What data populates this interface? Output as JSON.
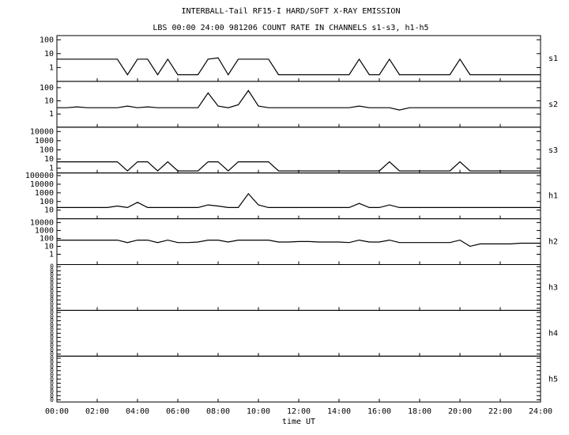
{
  "title": "INTERBALL-Tail RF15-I HARD/SOFT X-RAY EMISSION",
  "subtitle": "LBS 00:00 24:00 981206  COUNT RATE IN CHANNELS s1-s3, h1-h5",
  "x_axis": {
    "label": "time UT",
    "xlim": [
      0,
      24
    ],
    "xticks": [
      {
        "value": 0,
        "label": "00:00"
      },
      {
        "value": 2,
        "label": "02:00"
      },
      {
        "value": 4,
        "label": "04:00"
      },
      {
        "value": 6,
        "label": "06:00"
      },
      {
        "value": 8,
        "label": "08:00"
      },
      {
        "value": 10,
        "label": "10:00"
      },
      {
        "value": 12,
        "label": "12:00"
      },
      {
        "value": 14,
        "label": "14:00"
      },
      {
        "value": 16,
        "label": "16:00"
      },
      {
        "value": 18,
        "label": "18:00"
      },
      {
        "value": 20,
        "label": "20:00"
      },
      {
        "value": 22,
        "label": "22:00"
      },
      {
        "value": 24,
        "label": "24:00"
      }
    ],
    "x": [
      0,
      0.5,
      1,
      1.5,
      2,
      2.5,
      3,
      3.5,
      4,
      4.5,
      5,
      5.5,
      6,
      6.5,
      7,
      7.5,
      8,
      8.5,
      9,
      9.5,
      10,
      10.5,
      11,
      11.5,
      12,
      12.5,
      13,
      13.5,
      14,
      14.5,
      15,
      15.5,
      16,
      16.5,
      17,
      17.5,
      18,
      18.5,
      19,
      19.5,
      20,
      20.5,
      21,
      21.5,
      22,
      22.5,
      23,
      23.5,
      24
    ]
  },
  "chart_data": [
    {
      "type": "line",
      "label": "s1",
      "log": true,
      "color": "#000000",
      "ylim": [
        0.1,
        200
      ],
      "yticks": [
        1,
        10,
        100
      ],
      "values": [
        4,
        4,
        4,
        4,
        4,
        4,
        4,
        0.3,
        4,
        4,
        0.3,
        4,
        0.3,
        0.3,
        0.3,
        4,
        5,
        0.3,
        4,
        4,
        4,
        4,
        0.3,
        0.3,
        0.3,
        0.3,
        0.3,
        0.3,
        0.3,
        0.3,
        4,
        0.3,
        0.3,
        4,
        0.3,
        0.3,
        0.3,
        0.3,
        0.3,
        0.3,
        4,
        0.3,
        0.3,
        0.3,
        0.3,
        0.3,
        0.3,
        0.3,
        0.3
      ]
    },
    {
      "type": "line",
      "label": "s2",
      "log": true,
      "color": "#000000",
      "ylim": [
        0.1,
        300
      ],
      "yticks": [
        1,
        10,
        100
      ],
      "values": [
        3,
        3,
        3.5,
        3,
        3,
        3,
        3,
        4,
        3,
        3.5,
        3,
        3,
        3,
        3,
        3,
        40,
        4,
        3,
        5,
        60,
        4,
        3,
        3,
        3,
        3,
        3,
        3,
        3,
        3,
        3,
        4,
        3,
        3,
        3,
        2,
        3,
        3,
        3,
        3,
        3,
        3,
        3,
        3,
        3,
        3,
        3,
        3,
        3,
        3
      ]
    },
    {
      "type": "line",
      "label": "s3",
      "log": true,
      "color": "#000000",
      "ylim": [
        0.3,
        30000
      ],
      "yticks": [
        1,
        10,
        100,
        1000,
        10000
      ],
      "values": [
        5,
        5,
        5,
        5,
        5,
        5,
        5,
        0.5,
        5,
        5,
        0.5,
        5,
        0.5,
        0.5,
        0.5,
        5,
        5,
        0.5,
        5,
        5,
        5,
        5,
        0.5,
        0.5,
        0.5,
        0.5,
        0.5,
        0.5,
        0.5,
        0.5,
        0.5,
        0.5,
        0.5,
        5,
        0.5,
        0.5,
        0.5,
        0.5,
        0.5,
        0.5,
        5,
        0.5,
        0.5,
        0.5,
        0.5,
        0.5,
        0.5,
        0.5,
        0.5
      ]
    },
    {
      "type": "line",
      "label": "h1",
      "log": true,
      "color": "#000000",
      "ylim": [
        1,
        200000
      ],
      "yticks": [
        10,
        100,
        1000,
        10000,
        100000
      ],
      "values": [
        20,
        20,
        20,
        20,
        20,
        20,
        30,
        20,
        80,
        20,
        20,
        20,
        20,
        20,
        20,
        40,
        30,
        20,
        20,
        800,
        40,
        20,
        20,
        20,
        20,
        20,
        20,
        20,
        20,
        20,
        60,
        20,
        20,
        40,
        20,
        20,
        20,
        20,
        20,
        20,
        20,
        20,
        20,
        20,
        20,
        20,
        20,
        20,
        20
      ]
    },
    {
      "type": "line",
      "label": "h2",
      "log": true,
      "color": "#000000",
      "ylim": [
        0.05,
        30000
      ],
      "yticks": [
        1,
        10,
        100,
        1000,
        10000
      ],
      "values": [
        60,
        60,
        60,
        60,
        60,
        60,
        60,
        30,
        60,
        60,
        30,
        60,
        30,
        30,
        35,
        60,
        60,
        35,
        60,
        60,
        60,
        60,
        35,
        35,
        40,
        40,
        35,
        35,
        35,
        30,
        60,
        35,
        35,
        60,
        30,
        30,
        30,
        30,
        30,
        30,
        60,
        10,
        20,
        20,
        20,
        20,
        25,
        25,
        25
      ]
    },
    {
      "type": "line",
      "label": "h3",
      "log": false,
      "ylim": [
        -0.005,
        0.105
      ],
      "yticks": [
        {
          "value": 0,
          "label": "0"
        },
        {
          "value": 0.01,
          "label": "0"
        },
        {
          "value": 0.02,
          "label": "0"
        },
        {
          "value": 0.03,
          "label": "0"
        },
        {
          "value": 0.04,
          "label": "0"
        },
        {
          "value": 0.05,
          "label": "0"
        },
        {
          "value": 0.06,
          "label": "0"
        },
        {
          "value": 0.07,
          "label": "0"
        },
        {
          "value": 0.08,
          "label": "0"
        },
        {
          "value": 0.09,
          "label": "0"
        },
        {
          "value": 0.1,
          "label": "0"
        }
      ]
    },
    {
      "type": "line",
      "label": "h4",
      "log": false,
      "ylim": [
        -0.005,
        0.105
      ],
      "yticks": [
        {
          "value": 0,
          "label": "0"
        },
        {
          "value": 0.01,
          "label": "0"
        },
        {
          "value": 0.02,
          "label": "0"
        },
        {
          "value": 0.03,
          "label": "0"
        },
        {
          "value": 0.04,
          "label": "0"
        },
        {
          "value": 0.05,
          "label": "0"
        },
        {
          "value": 0.06,
          "label": "0"
        },
        {
          "value": 0.07,
          "label": "0"
        },
        {
          "value": 0.08,
          "label": "0"
        },
        {
          "value": 0.09,
          "label": "0"
        },
        {
          "value": 0.1,
          "label": "0"
        }
      ]
    },
    {
      "type": "line",
      "label": "h5",
      "log": false,
      "ylim": [
        -0.005,
        0.105
      ],
      "yticks": [
        {
          "value": 0,
          "label": "0"
        },
        {
          "value": 0.01,
          "label": "0"
        },
        {
          "value": 0.02,
          "label": "0"
        },
        {
          "value": 0.03,
          "label": "0"
        },
        {
          "value": 0.04,
          "label": "0"
        },
        {
          "value": 0.05,
          "label": "0"
        },
        {
          "value": 0.06,
          "label": "0"
        },
        {
          "value": 0.07,
          "label": "0"
        },
        {
          "value": 0.08,
          "label": "0"
        },
        {
          "value": 0.09,
          "label": "0"
        },
        {
          "value": 0.1,
          "label": "0"
        }
      ]
    }
  ]
}
